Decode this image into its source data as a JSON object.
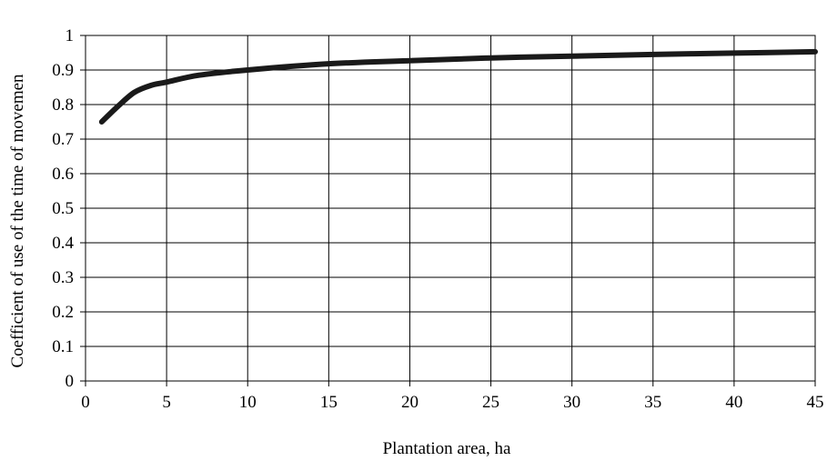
{
  "chart_data": {
    "type": "line",
    "title": "",
    "xlabel": "Plantation area, ha",
    "ylabel": "Coefficient of use  of the time of movemen",
    "xlim": [
      0,
      45
    ],
    "ylim": [
      0,
      1
    ],
    "x_ticks": [
      "0",
      "5",
      "10",
      "15",
      "20",
      "25",
      "30",
      "35",
      "40",
      "45"
    ],
    "y_ticks": [
      "0",
      "0.1",
      "0.2",
      "0.3",
      "0.4",
      "0.5",
      "0.6",
      "0.7",
      "0.8",
      "0.9",
      "1"
    ],
    "grid": true,
    "legend": "none",
    "series": [
      {
        "color": "#1a1a1a",
        "x": [
          1,
          2,
          3,
          4,
          5,
          7,
          10,
          15,
          20,
          25,
          30,
          35,
          40,
          45
        ],
        "y": [
          0.75,
          0.795,
          0.835,
          0.855,
          0.865,
          0.885,
          0.9,
          0.918,
          0.927,
          0.935,
          0.94,
          0.945,
          0.949,
          0.953
        ]
      }
    ]
  }
}
